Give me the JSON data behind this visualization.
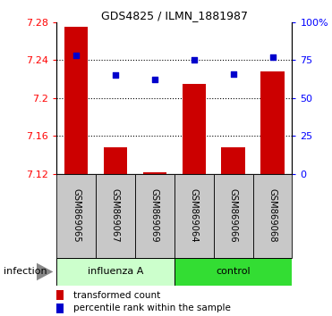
{
  "title": "GDS4825 / ILMN_1881987",
  "samples": [
    "GSM869065",
    "GSM869067",
    "GSM869069",
    "GSM869064",
    "GSM869066",
    "GSM869068"
  ],
  "group_labels": [
    "influenza A",
    "control"
  ],
  "bar_base": 7.12,
  "transformed_counts": [
    7.275,
    7.148,
    7.122,
    7.215,
    7.148,
    7.228
  ],
  "percentile_ranks": [
    78,
    65,
    62,
    75,
    66,
    77
  ],
  "ylim_left": [
    7.12,
    7.28
  ],
  "ylim_right": [
    0,
    100
  ],
  "yticks_left": [
    7.12,
    7.16,
    7.2,
    7.24,
    7.28
  ],
  "yticks_left_labels": [
    "7.12",
    "7.16",
    "7.2",
    "7.24",
    "7.28"
  ],
  "yticks_right": [
    0,
    25,
    50,
    75,
    100
  ],
  "yticks_right_labels": [
    "0",
    "25",
    "50",
    "75",
    "100%"
  ],
  "bar_color": "#cc0000",
  "dot_color": "#0000cc",
  "bar_width": 0.6,
  "xlabel": "infection",
  "background_plot": "#ffffff",
  "background_sample": "#c8c8c8",
  "background_influenza": "#ccffcc",
  "background_control": "#33dd33",
  "legend_items": [
    "transformed count",
    "percentile rank within the sample"
  ]
}
